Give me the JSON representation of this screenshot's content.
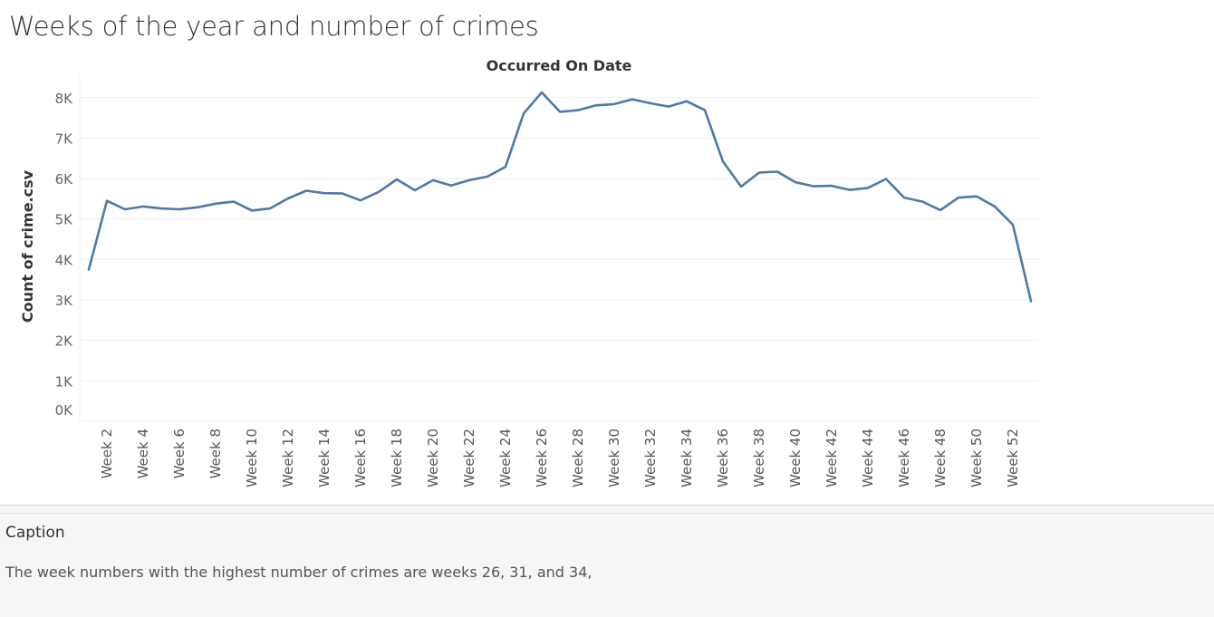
{
  "title": "Weeks of the year and number of crimes",
  "chart_data": {
    "type": "line",
    "xlabel": "Occurred On Date",
    "ylabel": "Count of crime.csv",
    "ylim": [
      0,
      8600
    ],
    "yticks": [
      0,
      1000,
      2000,
      3000,
      4000,
      5000,
      6000,
      7000,
      8000
    ],
    "ytick_labels": [
      "0K",
      "1K",
      "2K",
      "3K",
      "4K",
      "5K",
      "6K",
      "7K",
      "8K"
    ],
    "xtick_labels": [
      "Week 2",
      "Week 4",
      "Week 6",
      "Week 8",
      "Week 10",
      "Week 12",
      "Week 14",
      "Week 16",
      "Week 18",
      "Week 20",
      "Week 22",
      "Week 24",
      "Week 26",
      "Week 28",
      "Week 30",
      "Week 32",
      "Week 34",
      "Week 36",
      "Week 38",
      "Week 40",
      "Week 42",
      "Week 44",
      "Week 46",
      "Week 48",
      "Week 50",
      "Week 52"
    ],
    "grid": true,
    "line_color": "#4e79a7",
    "series": [
      {
        "x": [
          1,
          2,
          3,
          4,
          5,
          6,
          7,
          8,
          9,
          10,
          11,
          12,
          13,
          14,
          15,
          16,
          17,
          18,
          19,
          20,
          21,
          22,
          23,
          24,
          25,
          26,
          27,
          28,
          29,
          30,
          31,
          32,
          33,
          34,
          35,
          36,
          37,
          38,
          39,
          40,
          41,
          42,
          43,
          44,
          45,
          46,
          47,
          48,
          49,
          50,
          51,
          52,
          53
        ],
        "values": [
          3750,
          5450,
          5240,
          5310,
          5260,
          5240,
          5290,
          5380,
          5430,
          5210,
          5260,
          5510,
          5700,
          5640,
          5630,
          5460,
          5670,
          5980,
          5710,
          5960,
          5830,
          5960,
          6050,
          6290,
          7610,
          8130,
          7650,
          7690,
          7810,
          7840,
          7960,
          7860,
          7780,
          7910,
          7690,
          6420,
          5800,
          6150,
          6170,
          5910,
          5810,
          5820,
          5720,
          5770,
          5990,
          5530,
          5430,
          5220,
          5530,
          5560,
          5310,
          4860,
          2970
        ]
      }
    ]
  },
  "caption": {
    "title": "Caption",
    "text": "The week numbers with the highest number of crimes are weeks 26, 31, and 34,"
  }
}
